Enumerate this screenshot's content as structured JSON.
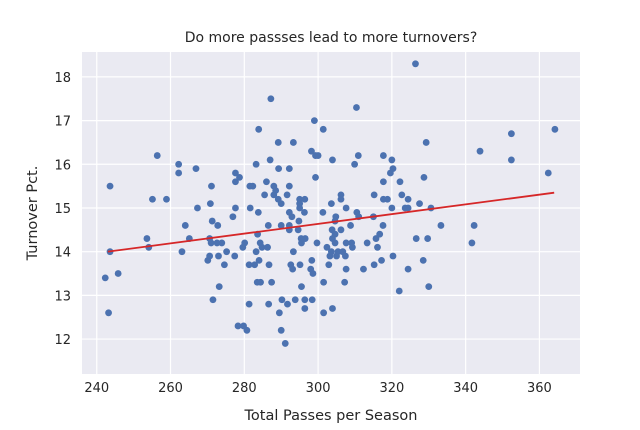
{
  "chart_data": {
    "type": "scatter",
    "title": "Do more passses lead to more turnovers?",
    "xlabel": "Total Passes per Season",
    "ylabel": "Turnover Pct.",
    "xlim": [
      236,
      371
    ],
    "ylim": [
      11.2,
      18.57
    ],
    "xticks": [
      240,
      260,
      280,
      300,
      320,
      340,
      360
    ],
    "yticks": [
      12,
      13,
      14,
      15,
      16,
      17,
      18
    ],
    "grid": true,
    "colors": {
      "points": "#4c72b0",
      "fit_line": "#d62728",
      "plot_background": "#eaeaf2",
      "grid": "#ffffff"
    },
    "fit_line": {
      "x": [
        243,
        364
      ],
      "y": [
        14.0,
        15.35
      ]
    },
    "points": [
      [
        326.4,
        18.3
      ],
      [
        287.2,
        17.5
      ],
      [
        310.4,
        17.3
      ],
      [
        299.0,
        17.0
      ],
      [
        283.9,
        16.8
      ],
      [
        301.4,
        16.8
      ],
      [
        364.2,
        16.8
      ],
      [
        352.4,
        16.7
      ],
      [
        289.2,
        16.5
      ],
      [
        293.3,
        16.5
      ],
      [
        329.3,
        16.5
      ],
      [
        256.4,
        16.2
      ],
      [
        298.2,
        16.3
      ],
      [
        299.3,
        16.2
      ],
      [
        300.0,
        16.2
      ],
      [
        310.9,
        16.2
      ],
      [
        317.7,
        16.2
      ],
      [
        343.9,
        16.3
      ],
      [
        287.0,
        16.1
      ],
      [
        303.9,
        16.1
      ],
      [
        320.0,
        16.1
      ],
      [
        352.4,
        16.1
      ],
      [
        262.2,
        16.0
      ],
      [
        283.2,
        16.0
      ],
      [
        309.9,
        16.0
      ],
      [
        266.9,
        15.9
      ],
      [
        289.3,
        15.9
      ],
      [
        292.2,
        15.9
      ],
      [
        320.3,
        15.9
      ],
      [
        262.2,
        15.8
      ],
      [
        277.6,
        15.8
      ],
      [
        319.6,
        15.8
      ],
      [
        362.4,
        15.8
      ],
      [
        328.7,
        15.7
      ],
      [
        278.7,
        15.7
      ],
      [
        299.3,
        15.7
      ],
      [
        277.6,
        15.6
      ],
      [
        286.0,
        15.6
      ],
      [
        317.7,
        15.6
      ],
      [
        322.2,
        15.6
      ],
      [
        243.6,
        15.5
      ],
      [
        271.1,
        15.5
      ],
      [
        281.5,
        15.5
      ],
      [
        282.3,
        15.5
      ],
      [
        288.0,
        15.5
      ],
      [
        292.2,
        15.5
      ],
      [
        288.5,
        15.4
      ],
      [
        255.1,
        15.2
      ],
      [
        258.9,
        15.2
      ],
      [
        285.5,
        15.3
      ],
      [
        288.0,
        15.3
      ],
      [
        291.6,
        15.3
      ],
      [
        306.2,
        15.3
      ],
      [
        315.2,
        15.3
      ],
      [
        322.7,
        15.3
      ],
      [
        289.2,
        15.2
      ],
      [
        295.0,
        15.2
      ],
      [
        296.4,
        15.2
      ],
      [
        306.2,
        15.2
      ],
      [
        317.7,
        15.2
      ],
      [
        318.8,
        15.2
      ],
      [
        324.4,
        15.2
      ],
      [
        290.0,
        15.1
      ],
      [
        270.8,
        15.1
      ],
      [
        295.0,
        15.1
      ],
      [
        303.6,
        15.1
      ],
      [
        327.5,
        15.1
      ],
      [
        267.3,
        15.0
      ],
      [
        277.6,
        15.0
      ],
      [
        281.6,
        15.0
      ],
      [
        295.0,
        15.0
      ],
      [
        307.6,
        15.0
      ],
      [
        320.0,
        15.0
      ],
      [
        323.6,
        15.0
      ],
      [
        324.4,
        15.0
      ],
      [
        330.6,
        15.0
      ],
      [
        283.8,
        14.9
      ],
      [
        292.2,
        14.9
      ],
      [
        301.3,
        14.9
      ],
      [
        310.5,
        14.9
      ],
      [
        296.3,
        14.9
      ],
      [
        276.9,
        14.8
      ],
      [
        292.9,
        14.8
      ],
      [
        304.8,
        14.8
      ],
      [
        315.0,
        14.8
      ],
      [
        311.0,
        14.8
      ],
      [
        271.3,
        14.7
      ],
      [
        294.8,
        14.7
      ],
      [
        304.6,
        14.7
      ],
      [
        264.0,
        14.6
      ],
      [
        272.8,
        14.6
      ],
      [
        286.5,
        14.6
      ],
      [
        290.0,
        14.6
      ],
      [
        292.2,
        14.6
      ],
      [
        317.6,
        14.6
      ],
      [
        308.8,
        14.6
      ],
      [
        333.3,
        14.6
      ],
      [
        342.3,
        14.6
      ],
      [
        294.6,
        14.5
      ],
      [
        292.2,
        14.5
      ],
      [
        306.2,
        14.5
      ],
      [
        303.8,
        14.5
      ],
      [
        283.6,
        14.4
      ],
      [
        304.6,
        14.4
      ],
      [
        316.7,
        14.4
      ],
      [
        253.6,
        14.3
      ],
      [
        265.1,
        14.3
      ],
      [
        270.6,
        14.3
      ],
      [
        295.4,
        14.3
      ],
      [
        296.5,
        14.3
      ],
      [
        326.6,
        14.3
      ],
      [
        329.7,
        14.3
      ],
      [
        315.7,
        14.3
      ],
      [
        303.9,
        14.3
      ],
      [
        271.0,
        14.2
      ],
      [
        272.6,
        14.2
      ],
      [
        273.9,
        14.2
      ],
      [
        280.1,
        14.2
      ],
      [
        284.3,
        14.2
      ],
      [
        295.5,
        14.2
      ],
      [
        299.7,
        14.2
      ],
      [
        307.6,
        14.2
      ],
      [
        309.1,
        14.2
      ],
      [
        313.3,
        14.2
      ],
      [
        341.7,
        14.2
      ],
      [
        304.6,
        14.2
      ],
      [
        254.1,
        14.1
      ],
      [
        279.6,
        14.1
      ],
      [
        284.8,
        14.1
      ],
      [
        286.3,
        14.1
      ],
      [
        302.4,
        14.1
      ],
      [
        309.3,
        14.1
      ],
      [
        316.1,
        14.1
      ],
      [
        243.6,
        14.0
      ],
      [
        263.1,
        14.0
      ],
      [
        275.2,
        14.0
      ],
      [
        283.2,
        14.0
      ],
      [
        293.3,
        14.0
      ],
      [
        303.6,
        14.0
      ],
      [
        305.4,
        14.0
      ],
      [
        306.7,
        14.0
      ],
      [
        303.2,
        13.9
      ],
      [
        270.6,
        13.9
      ],
      [
        273.0,
        13.9
      ],
      [
        277.4,
        13.9
      ],
      [
        305.0,
        13.9
      ],
      [
        307.4,
        13.9
      ],
      [
        320.3,
        13.9
      ],
      [
        270.1,
        13.8
      ],
      [
        284.0,
        13.8
      ],
      [
        298.3,
        13.8
      ],
      [
        317.2,
        13.8
      ],
      [
        328.5,
        13.8
      ],
      [
        274.6,
        13.7
      ],
      [
        281.3,
        13.7
      ],
      [
        282.8,
        13.7
      ],
      [
        286.7,
        13.7
      ],
      [
        292.6,
        13.7
      ],
      [
        295.1,
        13.7
      ],
      [
        302.9,
        13.7
      ],
      [
        315.2,
        13.7
      ],
      [
        293.1,
        13.6
      ],
      [
        298.0,
        13.6
      ],
      [
        307.6,
        13.6
      ],
      [
        312.3,
        13.6
      ],
      [
        324.4,
        13.6
      ],
      [
        298.6,
        13.5
      ],
      [
        245.8,
        13.5
      ],
      [
        242.3,
        13.4
      ],
      [
        283.5,
        13.3
      ],
      [
        284.4,
        13.3
      ],
      [
        287.4,
        13.3
      ],
      [
        301.5,
        13.3
      ],
      [
        307.2,
        13.3
      ],
      [
        273.2,
        13.2
      ],
      [
        295.5,
        13.2
      ],
      [
        330.0,
        13.2
      ],
      [
        322.0,
        13.1
      ],
      [
        271.5,
        12.9
      ],
      [
        290.2,
        12.9
      ],
      [
        293.8,
        12.9
      ],
      [
        296.4,
        12.9
      ],
      [
        298.4,
        12.9
      ],
      [
        281.3,
        12.8
      ],
      [
        286.6,
        12.8
      ],
      [
        291.7,
        12.8
      ],
      [
        296.4,
        12.7
      ],
      [
        303.9,
        12.7
      ],
      [
        243.2,
        12.6
      ],
      [
        289.5,
        12.6
      ],
      [
        301.5,
        12.6
      ],
      [
        278.3,
        12.3
      ],
      [
        279.8,
        12.3
      ],
      [
        280.7,
        12.2
      ],
      [
        290.0,
        12.2
      ],
      [
        291.1,
        11.9
      ]
    ]
  }
}
